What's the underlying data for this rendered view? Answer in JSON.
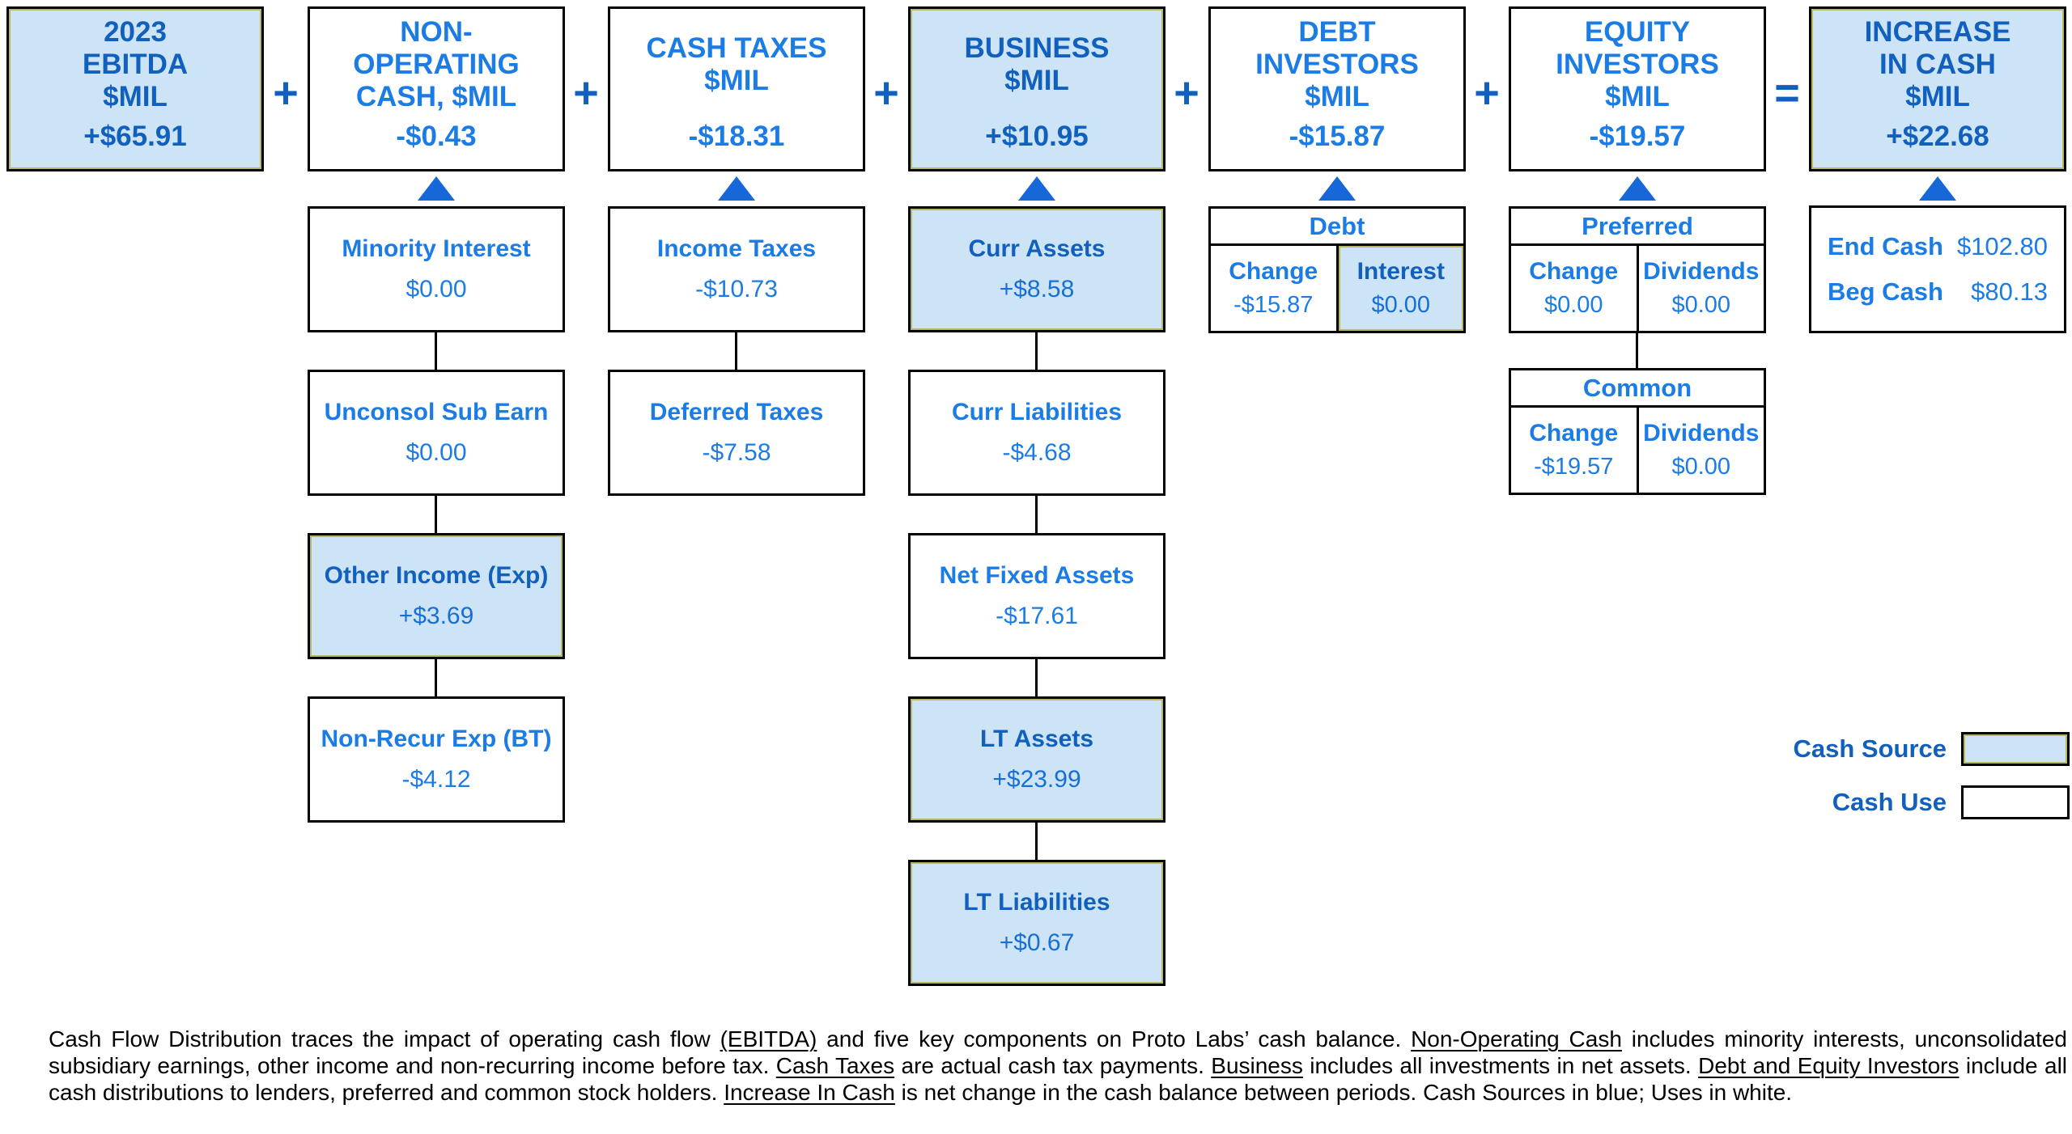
{
  "colors": {
    "cash_source_fill": "#cde4f7",
    "text_blue_on_blue": "#1160bd",
    "text_blue_on_white": "#1b7ce6",
    "operator_blue": "#1160bd",
    "arrow_blue": "#1668d8",
    "border": "#000000",
    "footnote_text": "#000000"
  },
  "operators": [
    "+",
    "+",
    "+",
    "+",
    "+",
    "="
  ],
  "top_boxes": [
    {
      "title": "2023\nEBITDA\n$MIL",
      "value": "+$65.91",
      "fill": "blue"
    },
    {
      "title": "NON-\nOPERATING\nCASH, $MIL",
      "value": "-$0.43",
      "fill": "white"
    },
    {
      "title": "CASH TAXES\n$MIL",
      "value": "-$18.31",
      "fill": "white"
    },
    {
      "title": "BUSINESS\n$MIL",
      "value": "+$10.95",
      "fill": "blue"
    },
    {
      "title": "DEBT\nINVESTORS\n$MIL",
      "value": "-$15.87",
      "fill": "white"
    },
    {
      "title": "EQUITY\nINVESTORS\n$MIL",
      "value": "-$19.57",
      "fill": "white"
    },
    {
      "title": "INCREASE\nIN CASH\n$MIL",
      "value": "+$22.68",
      "fill": "blue"
    }
  ],
  "non_operating_items": [
    {
      "label": "Minority Interest",
      "value": "$0.00",
      "fill": "white"
    },
    {
      "label": "Unconsol Sub Earn",
      "value": "$0.00",
      "fill": "white"
    },
    {
      "label": "Other Income (Exp)",
      "value": "+$3.69",
      "fill": "blue"
    },
    {
      "label": "Non-Recur Exp (BT)",
      "value": "-$4.12",
      "fill": "white"
    }
  ],
  "cash_tax_items": [
    {
      "label": "Income Taxes",
      "value": "-$10.73",
      "fill": "white"
    },
    {
      "label": "Deferred Taxes",
      "value": "-$7.58",
      "fill": "white"
    }
  ],
  "business_items": [
    {
      "label": "Curr Assets",
      "value": "+$8.58",
      "fill": "blue"
    },
    {
      "label": "Curr Liabilities",
      "value": "-$4.68",
      "fill": "white"
    },
    {
      "label": "Net Fixed Assets",
      "value": "-$17.61",
      "fill": "white"
    },
    {
      "label": "LT Assets",
      "value": "+$23.99",
      "fill": "blue"
    },
    {
      "label": "LT Liabilities",
      "value": "+$0.67",
      "fill": "blue"
    }
  ],
  "debt_table": {
    "header": "Debt",
    "cells": [
      {
        "label": "Change",
        "value": "-$15.87",
        "fill": "white"
      },
      {
        "label": "Interest",
        "value": "$0.00",
        "fill": "blue"
      }
    ]
  },
  "preferred_table": {
    "header": "Preferred",
    "cells": [
      {
        "label": "Change",
        "value": "$0.00",
        "fill": "white"
      },
      {
        "label": "Dividends",
        "value": "$0.00",
        "fill": "white"
      }
    ]
  },
  "common_table": {
    "header": "Common",
    "cells": [
      {
        "label": "Change",
        "value": "-$19.57",
        "fill": "white"
      },
      {
        "label": "Dividends",
        "value": "$0.00",
        "fill": "white"
      }
    ]
  },
  "cash_summary": {
    "rows": [
      {
        "label": "End Cash",
        "value": "$102.80"
      },
      {
        "label": "Beg Cash",
        "value": "$80.13"
      }
    ]
  },
  "legend": [
    {
      "label": "Cash Source",
      "fill": "blue"
    },
    {
      "label": "Cash Use",
      "fill": "white"
    }
  ],
  "footnote": {
    "segments": [
      {
        "t": "Cash Flow Distribution traces the impact of operating cash flow "
      },
      {
        "t": "(EBITDA)",
        "u": true
      },
      {
        "t": " and five key components on Proto Labs’ cash balance.  "
      },
      {
        "t": "Non-Operating Cash",
        "u": true
      },
      {
        "t": " includes minority interests, unconsolidated subsidiary earnings, other income and non-recurring income before tax.  "
      },
      {
        "t": "Cash Taxes",
        "u": true
      },
      {
        "t": " are actual cash tax payments.  "
      },
      {
        "t": "Business",
        "u": true
      },
      {
        "t": " includes all investments in net assets.  "
      },
      {
        "t": "Debt and Equity Investors",
        "u": true
      },
      {
        "t": " include all cash distributions to lenders, preferred and common stock holders.  "
      },
      {
        "t": "Increase In Cash",
        "u": true
      },
      {
        "t": " is net change in the cash balance between periods.  Cash Sources in blue;  Uses in white."
      }
    ]
  }
}
